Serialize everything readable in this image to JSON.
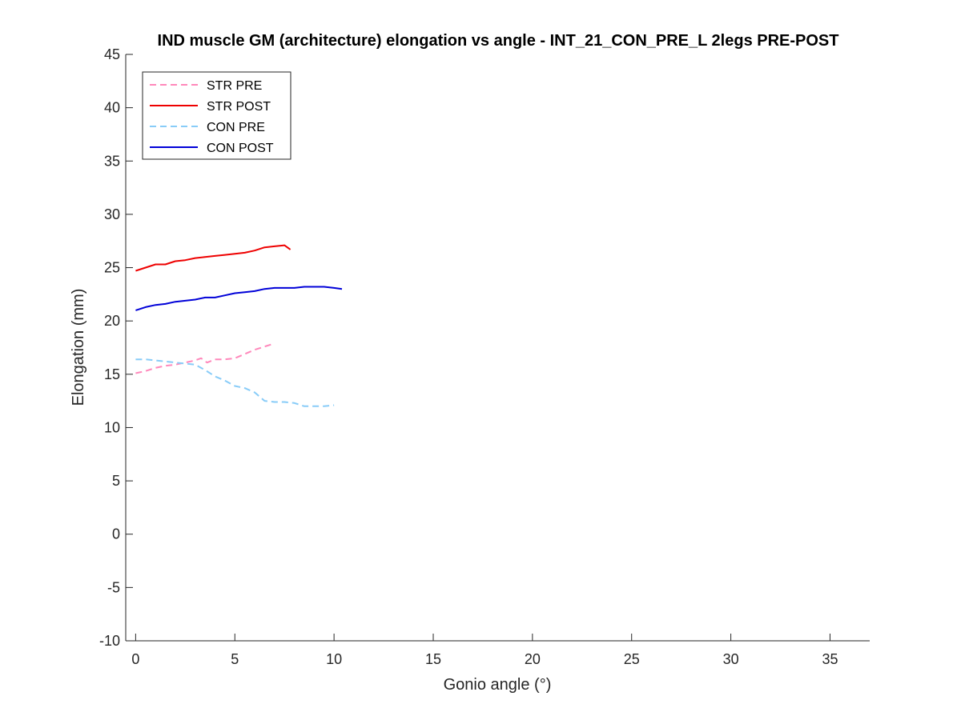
{
  "chart_data": {
    "type": "line",
    "title": "IND muscle GM (architecture) elongation vs angle - INT_21_CON_PRE_L 2legs PRE-POST",
    "xlabel": "Gonio angle (°)",
    "ylabel": "Elongation (mm)",
    "xlim": [
      -0.5,
      37
    ],
    "ylim": [
      -10,
      45
    ],
    "xticks": [
      0,
      5,
      10,
      15,
      20,
      25,
      30,
      35
    ],
    "yticks": [
      -10,
      -5,
      0,
      5,
      10,
      15,
      20,
      25,
      30,
      35,
      40,
      45
    ],
    "grid": false,
    "legend_position": "top-left",
    "series": [
      {
        "name": "STR PRE",
        "color": "#ff88bb",
        "style": "dashed",
        "x": [
          0.0,
          0.5,
          1.0,
          1.5,
          2.0,
          2.5,
          3.0,
          3.3,
          3.6,
          4.0,
          4.5,
          5.0,
          5.5,
          6.0,
          6.5,
          7.0
        ],
        "y": [
          15.1,
          15.3,
          15.6,
          15.8,
          15.9,
          16.1,
          16.3,
          16.5,
          16.1,
          16.4,
          16.4,
          16.5,
          16.9,
          17.3,
          17.6,
          17.9
        ]
      },
      {
        "name": "STR POST",
        "color": "#ee0000",
        "style": "solid",
        "x": [
          0.0,
          0.5,
          1.0,
          1.5,
          2.0,
          2.5,
          3.0,
          3.5,
          4.0,
          4.5,
          5.0,
          5.5,
          6.0,
          6.5,
          7.0,
          7.5,
          7.8
        ],
        "y": [
          24.7,
          25.0,
          25.3,
          25.3,
          25.6,
          25.7,
          25.9,
          26.0,
          26.1,
          26.2,
          26.3,
          26.4,
          26.6,
          26.9,
          27.0,
          27.1,
          26.7
        ]
      },
      {
        "name": "CON PRE",
        "color": "#88ccf8",
        "style": "dashed",
        "x": [
          0.0,
          0.5,
          1.0,
          1.5,
          2.0,
          2.5,
          3.0,
          3.5,
          4.0,
          4.5,
          5.0,
          5.5,
          6.0,
          6.5,
          7.0,
          7.5,
          8.0,
          8.5,
          9.0,
          9.5,
          10.0
        ],
        "y": [
          16.4,
          16.4,
          16.3,
          16.2,
          16.1,
          16.0,
          15.9,
          15.4,
          14.8,
          14.4,
          13.9,
          13.7,
          13.3,
          12.5,
          12.4,
          12.4,
          12.3,
          12.0,
          12.0,
          12.0,
          12.1
        ]
      },
      {
        "name": "CON POST",
        "color": "#0000d8",
        "style": "solid",
        "x": [
          0.0,
          0.5,
          1.0,
          1.5,
          2.0,
          2.5,
          3.0,
          3.5,
          4.0,
          4.5,
          5.0,
          5.5,
          6.0,
          6.5,
          7.0,
          7.5,
          8.0,
          8.5,
          9.0,
          9.5,
          10.0,
          10.4
        ],
        "y": [
          21.0,
          21.3,
          21.5,
          21.6,
          21.8,
          21.9,
          22.0,
          22.2,
          22.2,
          22.4,
          22.6,
          22.7,
          22.8,
          23.0,
          23.1,
          23.1,
          23.1,
          23.2,
          23.2,
          23.2,
          23.1,
          23.0
        ]
      }
    ]
  }
}
